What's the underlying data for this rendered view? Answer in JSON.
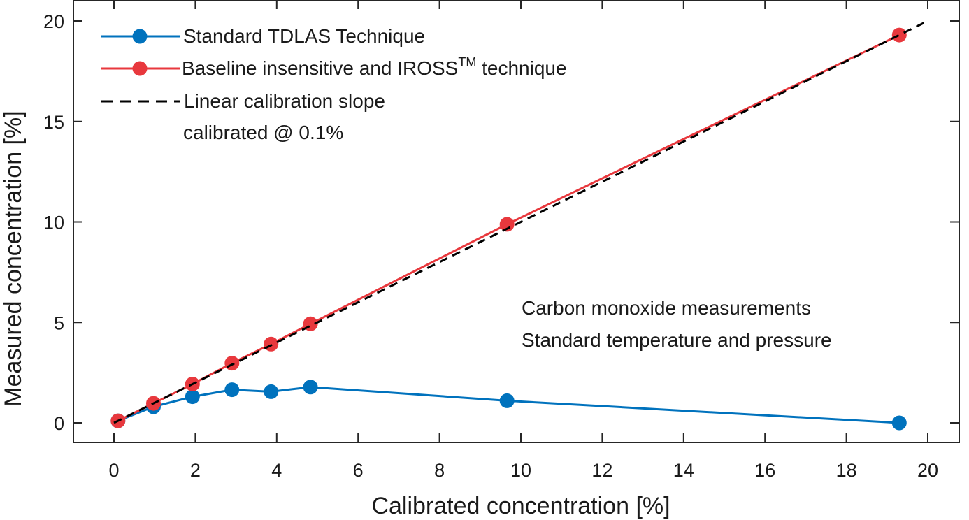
{
  "chart_data": {
    "type": "line",
    "title": "",
    "xlabel": "Calibrated concentration [%]",
    "ylabel": "Measured concentration [%]",
    "xlim": [
      -1,
      20.5
    ],
    "ylim": [
      -1,
      21
    ],
    "xticks": [
      0,
      2,
      4,
      6,
      8,
      10,
      12,
      14,
      16,
      18,
      20
    ],
    "yticks": [
      0,
      5,
      10,
      15,
      20
    ],
    "grid": false,
    "legend_position": "top-left",
    "series": [
      {
        "name": "Standard TDLAS Technique",
        "color": "#0072bd",
        "style": "line-marker",
        "x": [
          0.1,
          0.97,
          1.93,
          2.9,
          3.86,
          4.83,
          9.66,
          19.3
        ],
        "y": [
          0.1,
          0.8,
          1.3,
          1.65,
          1.55,
          1.78,
          1.1,
          0.0
        ]
      },
      {
        "name": "Baseline insensitive and IROSS",
        "name_superscript": "TM",
        "name_suffix": " technique",
        "color": "#e8383d",
        "style": "line-marker",
        "x": [
          0.1,
          0.97,
          1.93,
          2.9,
          3.86,
          4.83,
          9.66,
          19.3
        ],
        "y": [
          0.1,
          0.97,
          1.93,
          2.97,
          3.92,
          4.93,
          9.88,
          19.3
        ]
      },
      {
        "name": "Linear calibration slope",
        "name_line2": "calibrated @ 0.1%",
        "color": "#000000",
        "style": "dashed",
        "x": [
          0.0,
          20.0
        ],
        "y": [
          0.0,
          20.0
        ]
      }
    ],
    "annotations": [
      "Carbon monoxide measurements",
      "Standard temperature and pressure"
    ]
  }
}
